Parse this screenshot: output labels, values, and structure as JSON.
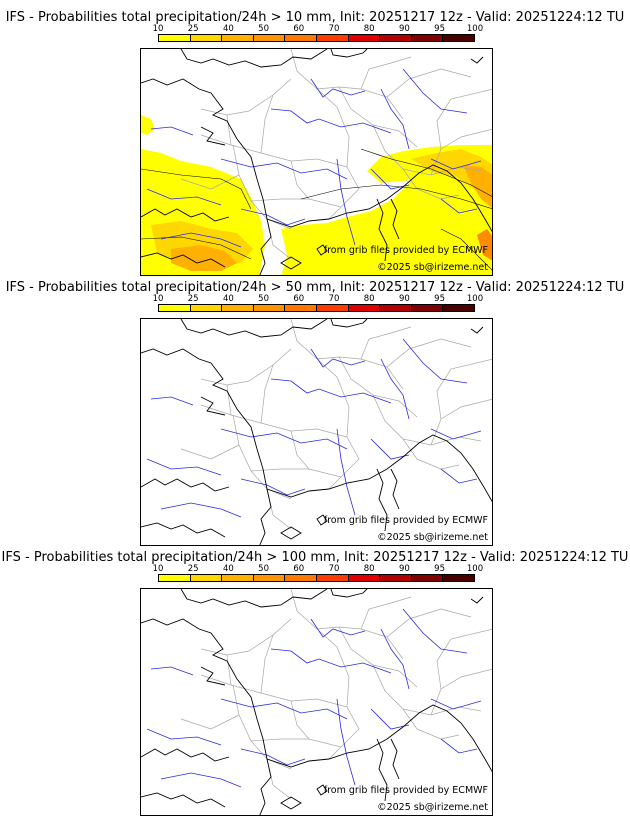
{
  "panels": [
    {
      "title": "IFS - Probabilities total precipitation/24h > 10 mm, Init: 20251217 12z - Valid: 20251224:12 TU",
      "threshold": "10 mm",
      "has_precip": true
    },
    {
      "title": "IFS - Probabilities total precipitation/24h > 50 mm, Init: 20251217 12z - Valid: 20251224:12 TU",
      "threshold": "50 mm",
      "has_precip": false
    },
    {
      "title": "IFS - Probabilities total precipitation/24h > 100 mm, Init: 20251217 12z - Valid: 20251224:12 TU",
      "threshold": "100 mm",
      "has_precip": false
    }
  ],
  "legend": {
    "ticks": [
      "10",
      "25",
      "40",
      "50",
      "60",
      "70",
      "80",
      "90",
      "95",
      "100"
    ],
    "colors": [
      "#ffff00",
      "#ffd700",
      "#ffb000",
      "#ff9400",
      "#ff7800",
      "#ff3c00",
      "#e00000",
      "#b00000",
      "#800000",
      "#4a0000"
    ]
  },
  "credits": {
    "grib": "from grib files provided by ECMWF",
    "copyright": "©2025 sb@irizeme.net"
  },
  "map_colors": {
    "coast": "#000000",
    "rivers": "#2a2ae6",
    "borders": "#a8a8a8",
    "precip_light": "#ffff00",
    "precip_mid": "#ffd700",
    "precip_high": "#ffb000",
    "precip_max": "#ff8c00"
  }
}
